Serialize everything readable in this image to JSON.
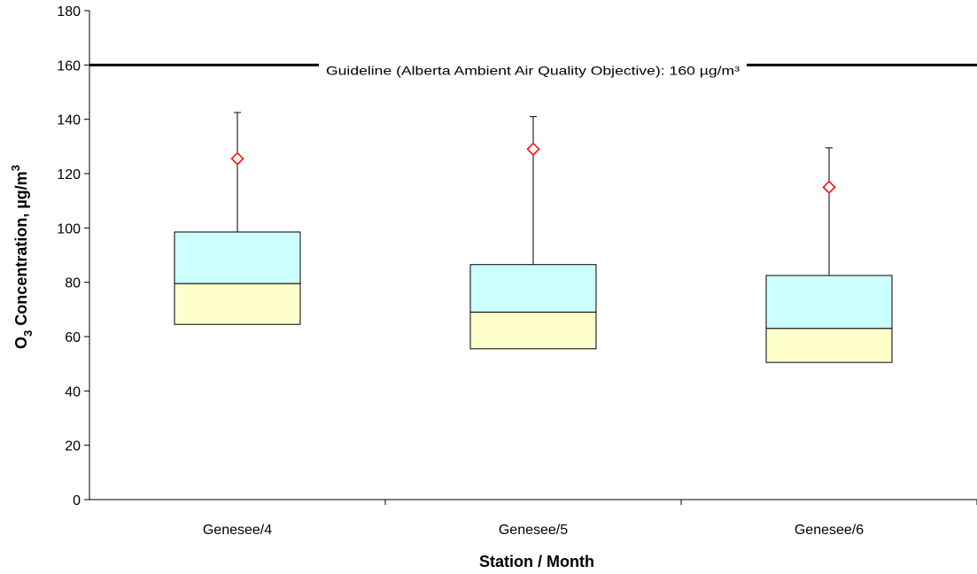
{
  "chart_data": {
    "type": "box",
    "xlabel": "Station / Month",
    "ylabel": {
      "prefix": "O",
      "subscript": "3",
      "text": " Concentration, µg/m",
      "superscript": "3"
    },
    "ylim": [
      0,
      180
    ],
    "yticks": [
      0,
      20,
      40,
      60,
      80,
      100,
      120,
      140,
      160,
      180
    ],
    "grid": false,
    "categories": [
      "Genesee/4",
      "Genesee/5",
      "Genesee/6"
    ],
    "boxes": [
      {
        "q1": 64.5,
        "median": 79.5,
        "q3": 98.5,
        "whisker_high": 142.5,
        "mean": 125.5
      },
      {
        "q1": 55.5,
        "median": 69,
        "q3": 86.5,
        "whisker_high": 141,
        "mean": 129
      },
      {
        "q1": 50.5,
        "median": 63,
        "q3": 82.5,
        "whisker_high": 129.5,
        "mean": 115
      }
    ],
    "guideline": {
      "value": 160,
      "label": "Guideline (Alberta Ambient Air Quality Objective): 160 µg/m³"
    },
    "colors": {
      "box_upper": "#ccffff",
      "box_lower": "#ffffcc",
      "mean_marker": "#ff0000",
      "lines": "#000000"
    }
  }
}
